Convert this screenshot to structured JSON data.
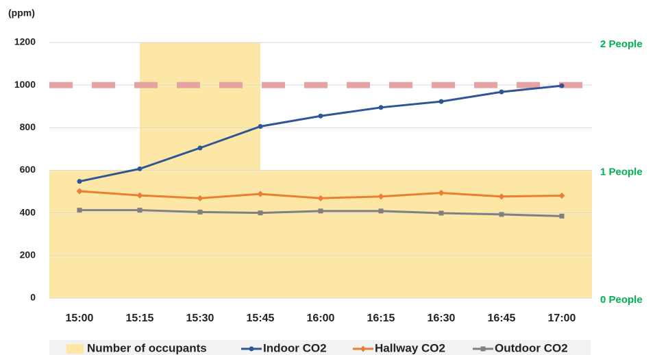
{
  "chart_data": {
    "type": "line",
    "y_label": "(ppm)",
    "categories": [
      "15:00",
      "15:15",
      "15:30",
      "15:45",
      "16:00",
      "16:15",
      "16:30",
      "16:45",
      "17:00"
    ],
    "series": [
      {
        "name": "Number of occupants",
        "type": "bar",
        "axis": "y2",
        "color": "#fde7a6",
        "values": [
          1,
          2,
          2,
          1,
          1,
          1,
          1,
          1,
          1
        ]
      },
      {
        "name": "Indoor CO2",
        "color": "#2f5597",
        "marker": "circle",
        "values": [
          548,
          607,
          705,
          806,
          855,
          895,
          923,
          968,
          997
        ]
      },
      {
        "name": "Hallway CO2",
        "color": "#ed7d31",
        "marker": "diamond",
        "values": [
          502,
          482,
          469,
          489,
          469,
          477,
          494,
          477,
          481
        ]
      },
      {
        "name": "Outdoor CO2",
        "color": "#808080",
        "marker": "square",
        "values": [
          413,
          413,
          404,
          400,
          409,
          409,
          399,
          393,
          385
        ]
      }
    ],
    "threshold": 1000,
    "threshold_color": "#e6a3a3",
    "ylim": [
      0,
      1200
    ],
    "yticks": [
      0,
      200,
      400,
      600,
      800,
      1000,
      1200
    ],
    "y2lim": [
      0,
      2
    ],
    "y2ticks": [
      {
        "value": 0,
        "label": "0 People"
      },
      {
        "value": 1,
        "label": "1 People"
      },
      {
        "value": 2,
        "label": "2 People"
      }
    ],
    "grid": true,
    "legend": "bottom"
  }
}
